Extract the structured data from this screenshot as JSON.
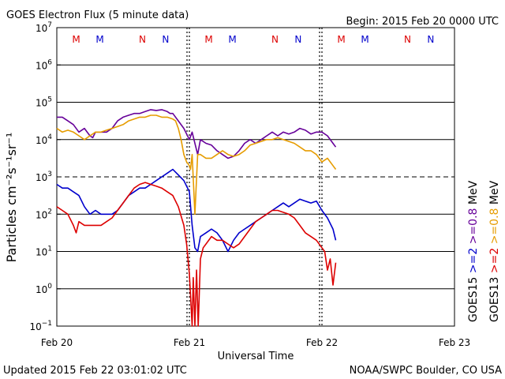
{
  "chart_data": {
    "type": "line",
    "title": "GOES Electron Flux (5 minute data)",
    "begin": "Begin: 2015 Feb 20 0000 UTC",
    "xlabel": "Universal Time",
    "ylabel": "Particles cm⁻²s⁻¹sr⁻¹",
    "updated": "Updated 2015 Feb 22 03:01:02 UTC",
    "credit": "NOAA/SWPC Boulder, CO USA",
    "x_unit": "hours since 2015 Feb 20 0000 UTC",
    "xlim": [
      0,
      72
    ],
    "ylim_log10": [
      -1,
      7
    ],
    "y_scale": "log",
    "x_ticks": [
      {
        "t": 0,
        "label": "Feb 20"
      },
      {
        "t": 24,
        "label": "Feb 21"
      },
      {
        "t": 48,
        "label": "Feb 22"
      },
      {
        "t": 72,
        "label": "Feb 23"
      }
    ],
    "y_ticks": [
      {
        "exp": -1,
        "base": "10",
        "sup": "−1"
      },
      {
        "exp": 0,
        "base": "10",
        "sup": "0"
      },
      {
        "exp": 1,
        "base": "10",
        "sup": "1"
      },
      {
        "exp": 2,
        "base": "10",
        "sup": "2"
      },
      {
        "exp": 3,
        "base": "10",
        "sup": "3"
      },
      {
        "exp": 4,
        "base": "10",
        "sup": "4"
      },
      {
        "exp": 5,
        "base": "10",
        "sup": "5"
      },
      {
        "exp": 6,
        "base": "10",
        "sup": "6"
      },
      {
        "exp": 7,
        "base": "10",
        "sup": "7"
      }
    ],
    "threshold_log10": 3,
    "day_markers": [
      {
        "t": 3.5,
        "label": "M",
        "color": "#dd0000"
      },
      {
        "t": 7.8,
        "label": "M",
        "color": "#0000cc"
      },
      {
        "t": 15.5,
        "label": "N",
        "color": "#dd0000"
      },
      {
        "t": 19.7,
        "label": "N",
        "color": "#0000cc"
      },
      {
        "t": 27.5,
        "label": "M",
        "color": "#dd0000"
      },
      {
        "t": 31.8,
        "label": "M",
        "color": "#0000cc"
      },
      {
        "t": 39.5,
        "label": "N",
        "color": "#dd0000"
      },
      {
        "t": 43.7,
        "label": "N",
        "color": "#0000cc"
      },
      {
        "t": 51.5,
        "label": "M",
        "color": "#dd0000"
      },
      {
        "t": 55.8,
        "label": "M",
        "color": "#0000cc"
      },
      {
        "t": 63.5,
        "label": "N",
        "color": "#dd0000"
      },
      {
        "t": 67.7,
        "label": "N",
        "color": "#0000cc"
      }
    ],
    "legend": [
      {
        "text": "GOES15",
        "color": "#000000"
      },
      {
        "text": ">=2",
        "color": "#0000cc"
      },
      {
        "text": ">=0.8",
        "color": "#660099"
      },
      {
        "text": "MeV",
        "color": "#000000"
      },
      {
        "text": "GOES13",
        "color": "#000000"
      },
      {
        "text": ">=2",
        "color": "#dd0000"
      },
      {
        "text": ">=0.8",
        "color": "#e69c00"
      },
      {
        "text": "MeV",
        "color": "#000000"
      }
    ],
    "series": [
      {
        "name": "GOES15 >=0.8 MeV",
        "color": "#660099",
        "x": [
          0,
          1,
          2,
          3,
          4,
          5,
          6,
          6.5,
          7,
          8,
          9,
          10,
          11,
          12,
          13,
          14,
          15,
          16,
          17,
          18,
          19,
          20,
          20.5,
          21,
          22,
          23,
          24,
          24.5,
          25,
          25.5,
          26,
          27,
          28,
          29,
          30,
          31,
          32,
          33,
          34,
          35,
          36,
          37,
          38,
          39,
          40,
          41,
          42,
          43,
          44,
          45,
          46,
          47,
          48,
          49,
          50,
          50.5
        ],
        "y": [
          4.6,
          4.6,
          4.5,
          4.4,
          4.2,
          4.3,
          4.1,
          4.05,
          4.2,
          4.2,
          4.2,
          4.3,
          4.5,
          4.6,
          4.65,
          4.7,
          4.7,
          4.75,
          4.8,
          4.78,
          4.8,
          4.75,
          4.7,
          4.7,
          4.5,
          4.3,
          4.0,
          4.2,
          3.9,
          3.6,
          4.0,
          3.9,
          3.85,
          3.7,
          3.6,
          3.5,
          3.55,
          3.7,
          3.9,
          4.0,
          3.9,
          4.0,
          4.1,
          4.2,
          4.1,
          4.2,
          4.15,
          4.2,
          4.3,
          4.25,
          4.15,
          4.2,
          4.2,
          4.1,
          3.9,
          3.8
        ]
      },
      {
        "name": "GOES13 >=0.8 MeV",
        "color": "#e69c00",
        "x": [
          0,
          1,
          2,
          3,
          4,
          5,
          6,
          7,
          8,
          9,
          10,
          11,
          12,
          13,
          14,
          15,
          16,
          17,
          18,
          19,
          20,
          21,
          21.5,
          22,
          22.5,
          23,
          23.5,
          24,
          24.2,
          24.5,
          25,
          25.5,
          26,
          27,
          28,
          29,
          30,
          31,
          32,
          33,
          34,
          35,
          36,
          37,
          38,
          39,
          40,
          41,
          42,
          43,
          44,
          45,
          46,
          47,
          48,
          49,
          50,
          50.5
        ],
        "y": [
          4.3,
          4.2,
          4.25,
          4.2,
          4.1,
          4.0,
          4.1,
          4.2,
          4.2,
          4.25,
          4.3,
          4.35,
          4.4,
          4.5,
          4.55,
          4.6,
          4.6,
          4.65,
          4.65,
          4.6,
          4.6,
          4.55,
          4.5,
          4.3,
          4.0,
          3.6,
          3.4,
          3.3,
          3.2,
          3.6,
          2.0,
          3.6,
          3.6,
          3.5,
          3.5,
          3.6,
          3.7,
          3.6,
          3.55,
          3.6,
          3.7,
          3.85,
          3.9,
          3.95,
          4.0,
          4.0,
          4.05,
          4.0,
          3.95,
          3.9,
          3.8,
          3.7,
          3.7,
          3.6,
          3.4,
          3.5,
          3.3,
          3.2
        ]
      },
      {
        "name": "GOES15 >=2 MeV",
        "color": "#0000cc",
        "x": [
          0,
          1,
          2,
          3,
          4,
          5,
          6,
          7,
          8,
          9,
          10,
          11,
          12,
          13,
          14,
          15,
          16,
          17,
          18,
          19,
          20,
          21,
          22,
          23,
          24,
          24.5,
          25,
          25.5,
          26,
          27,
          28,
          29,
          30,
          31,
          32,
          33,
          34,
          35,
          36,
          37,
          38,
          39,
          40,
          41,
          42,
          43,
          44,
          45,
          46,
          47,
          48,
          49,
          50,
          50.5
        ],
        "y": [
          2.8,
          2.7,
          2.7,
          2.6,
          2.5,
          2.2,
          2.0,
          2.1,
          2.0,
          2.0,
          2.0,
          2.1,
          2.3,
          2.5,
          2.6,
          2.7,
          2.7,
          2.8,
          2.9,
          3.0,
          3.1,
          3.2,
          3.05,
          2.9,
          2.6,
          1.7,
          1.1,
          1.0,
          1.4,
          1.5,
          1.6,
          1.5,
          1.3,
          1.0,
          1.3,
          1.5,
          1.6,
          1.7,
          1.8,
          1.9,
          2.0,
          2.1,
          2.2,
          2.3,
          2.2,
          2.3,
          2.4,
          2.35,
          2.3,
          2.35,
          2.1,
          1.9,
          1.6,
          1.3
        ]
      },
      {
        "name": "GOES13 >=2 MeV",
        "color": "#dd0000",
        "x": [
          0,
          1,
          2,
          3,
          3.5,
          4,
          5,
          6,
          7,
          8,
          9,
          10,
          11,
          12,
          13,
          14,
          15,
          16,
          17,
          18,
          19,
          20,
          21,
          22,
          23,
          23.5,
          24,
          24.5,
          24.7,
          25,
          25.3,
          25.6,
          26,
          26.5,
          27,
          28,
          29,
          30,
          31,
          32,
          33,
          34,
          35,
          36,
          37,
          38,
          39,
          40,
          41,
          42,
          43,
          44,
          45,
          46,
          47,
          48,
          48.5,
          49,
          49.5,
          50,
          50.5
        ],
        "y": [
          2.2,
          2.1,
          2.0,
          1.7,
          1.5,
          1.8,
          1.7,
          1.7,
          1.7,
          1.7,
          1.8,
          1.9,
          2.1,
          2.3,
          2.5,
          2.7,
          2.8,
          2.85,
          2.8,
          2.75,
          2.7,
          2.6,
          2.5,
          2.2,
          1.7,
          1.2,
          0.4,
          -1.0,
          0.3,
          -1.0,
          0.5,
          -1.0,
          0.8,
          1.1,
          1.2,
          1.4,
          1.3,
          1.3,
          1.2,
          1.1,
          1.2,
          1.4,
          1.6,
          1.8,
          1.9,
          2.0,
          2.1,
          2.1,
          2.05,
          2.0,
          1.9,
          1.7,
          1.5,
          1.4,
          1.3,
          1.1,
          1.0,
          0.5,
          0.8,
          0.1,
          0.7
        ]
      }
    ]
  }
}
